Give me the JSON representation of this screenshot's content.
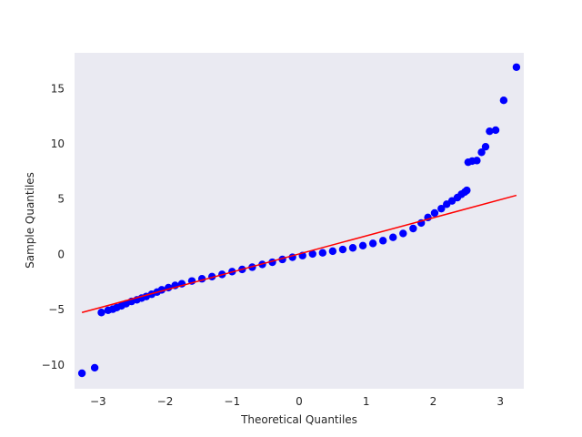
{
  "chart_data": {
    "type": "scatter",
    "title": "",
    "xlabel": "Theoretical Quantiles",
    "ylabel": "Sample Quantiles",
    "xlim": [
      -3.35,
      3.35
    ],
    "ylim": [
      -12.2,
      18.2
    ],
    "xticks": [
      -3,
      -2,
      -1,
      0,
      1,
      2,
      3
    ],
    "yticks": [
      -10,
      -5,
      0,
      5,
      10,
      15
    ],
    "xtick_labels": [
      "−3",
      "−2",
      "−1",
      "0",
      "1",
      "2",
      "3"
    ],
    "ytick_labels": [
      "−10",
      "−5",
      "0",
      "5",
      "10",
      "15"
    ],
    "grid": false,
    "background": "#eaeaf2",
    "series": [
      {
        "kind": "points",
        "color": "#0000ff",
        "points": [
          [
            -3.24,
            -10.8
          ],
          [
            -3.05,
            -10.3
          ],
          [
            -2.95,
            -5.3
          ],
          [
            -2.85,
            -5.1
          ],
          [
            -2.78,
            -5.0
          ],
          [
            -2.72,
            -4.85
          ],
          [
            -2.65,
            -4.7
          ],
          [
            -2.58,
            -4.5
          ],
          [
            -2.5,
            -4.3
          ],
          [
            -2.42,
            -4.15
          ],
          [
            -2.35,
            -4.0
          ],
          [
            -2.28,
            -3.85
          ],
          [
            -2.2,
            -3.65
          ],
          [
            -2.12,
            -3.45
          ],
          [
            -2.05,
            -3.25
          ],
          [
            -1.95,
            -3.05
          ],
          [
            -1.85,
            -2.85
          ],
          [
            -1.75,
            -2.7
          ],
          [
            -1.6,
            -2.45
          ],
          [
            -1.45,
            -2.25
          ],
          [
            -1.3,
            -2.05
          ],
          [
            -1.15,
            -1.85
          ],
          [
            -1.0,
            -1.6
          ],
          [
            -0.85,
            -1.4
          ],
          [
            -0.7,
            -1.2
          ],
          [
            -0.55,
            -0.95
          ],
          [
            -0.4,
            -0.75
          ],
          [
            -0.25,
            -0.5
          ],
          [
            -0.1,
            -0.3
          ],
          [
            0.05,
            -0.15
          ],
          [
            0.2,
            0.0
          ],
          [
            0.35,
            0.1
          ],
          [
            0.5,
            0.25
          ],
          [
            0.65,
            0.4
          ],
          [
            0.8,
            0.55
          ],
          [
            0.95,
            0.75
          ],
          [
            1.1,
            0.95
          ],
          [
            1.25,
            1.2
          ],
          [
            1.4,
            1.5
          ],
          [
            1.55,
            1.85
          ],
          [
            1.7,
            2.3
          ],
          [
            1.82,
            2.8
          ],
          [
            1.92,
            3.3
          ],
          [
            2.02,
            3.7
          ],
          [
            2.12,
            4.1
          ],
          [
            2.2,
            4.5
          ],
          [
            2.28,
            4.8
          ],
          [
            2.36,
            5.1
          ],
          [
            2.42,
            5.4
          ],
          [
            2.47,
            5.6
          ],
          [
            2.5,
            5.75
          ],
          [
            2.52,
            8.3
          ],
          [
            2.58,
            8.4
          ],
          [
            2.65,
            8.45
          ],
          [
            2.72,
            9.2
          ],
          [
            2.78,
            9.7
          ],
          [
            2.84,
            11.1
          ],
          [
            2.93,
            11.2
          ],
          [
            3.05,
            13.9
          ],
          [
            3.24,
            16.9
          ]
        ]
      },
      {
        "kind": "line",
        "color": "#ff0000",
        "points": [
          [
            -3.24,
            -5.3
          ],
          [
            3.24,
            5.3
          ]
        ]
      }
    ]
  }
}
